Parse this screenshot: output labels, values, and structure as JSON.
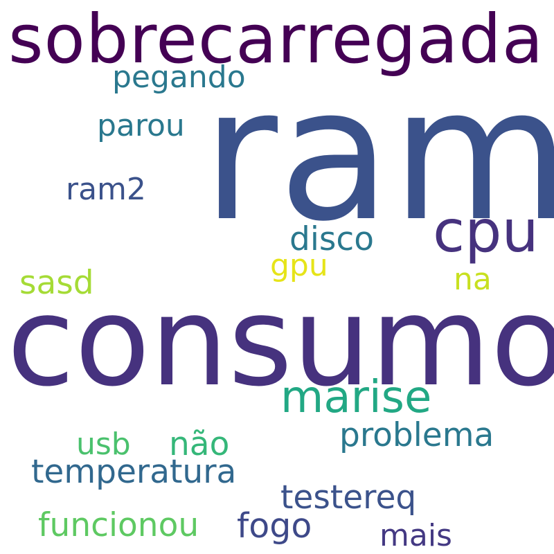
{
  "words": {
    "sobrecarregada": {
      "text": "sobrecarregada",
      "color": "#440154"
    },
    "ram": {
      "text": "ram",
      "color": "#3b528b"
    },
    "pegando": {
      "text": "pegando",
      "color": "#2a788e"
    },
    "parou": {
      "text": "parou",
      "color": "#2a788e"
    },
    "ram2": {
      "text": "ram2",
      "color": "#3b528b"
    },
    "cpu": {
      "text": "cpu",
      "color": "#46327e"
    },
    "disco": {
      "text": "disco",
      "color": "#2a788e"
    },
    "gpu": {
      "text": "gpu",
      "color": "#e6e419"
    },
    "sasd": {
      "text": "sasd",
      "color": "#a5db36"
    },
    "na": {
      "text": "na",
      "color": "#c8e020"
    },
    "consumo": {
      "text": "consumo",
      "color": "#46327e"
    },
    "marise": {
      "text": "marise",
      "color": "#22a884"
    },
    "usb": {
      "text": "usb",
      "color": "#4ac16d"
    },
    "nao": {
      "text": "não",
      "color": "#35b779"
    },
    "problema": {
      "text": "problema",
      "color": "#2a788e"
    },
    "temperatura": {
      "text": "temperatura",
      "color": "#31688e"
    },
    "testereq": {
      "text": "testereq",
      "color": "#3b528b"
    },
    "funcionou": {
      "text": "funcionou",
      "color": "#5ec962"
    },
    "fogo": {
      "text": "fogo",
      "color": "#3e4989"
    },
    "mais": {
      "text": "mais",
      "color": "#443983"
    }
  }
}
